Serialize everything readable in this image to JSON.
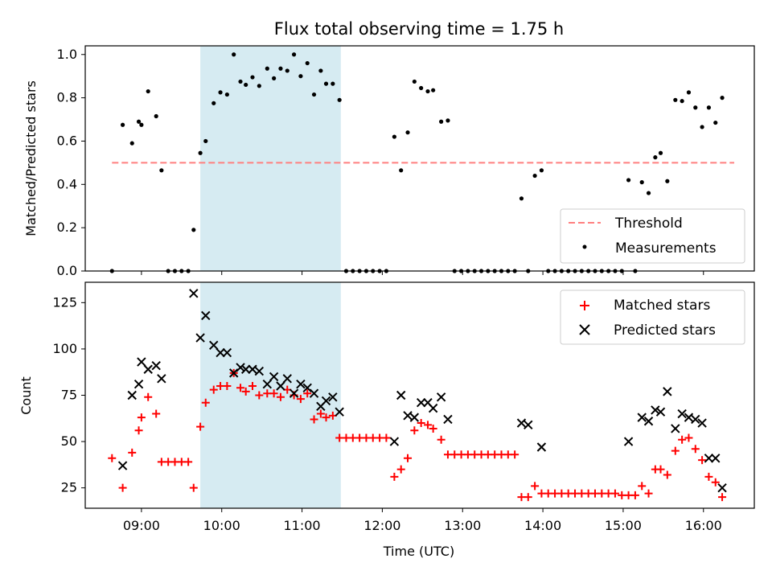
{
  "chart_data": {
    "type": "scatter",
    "title": "Flux total observing time = 1.75 h",
    "xlabel": "Time (UTC)",
    "x_ticks": [
      "09:00",
      "10:00",
      "11:00",
      "12:00",
      "13:00",
      "14:00",
      "15:00",
      "16:00"
    ],
    "shaded_interval": {
      "start": "09:44",
      "end": "11:29",
      "color": "#add8e6"
    },
    "top": {
      "ylabel": "Matched/Predicted stars",
      "ylim": [
        0,
        1.04
      ],
      "y_ticks": [
        "0.0",
        "0.2",
        "0.4",
        "0.6",
        "0.8",
        "1.0"
      ],
      "legend": [
        "Threshold",
        "Measurements"
      ],
      "legend_position": "lower-right",
      "threshold": {
        "value": 0.5,
        "x_start": "08:38",
        "x_end": "16:23",
        "color": "#ff7f7f"
      },
      "measurements": [
        [
          "08:38",
          0.0
        ],
        [
          "08:46",
          0.675
        ],
        [
          "08:53",
          0.59
        ],
        [
          "08:58",
          0.69
        ],
        [
          "09:00",
          0.675
        ],
        [
          "09:05",
          0.83
        ],
        [
          "09:11",
          0.715
        ],
        [
          "09:15",
          0.465
        ],
        [
          "09:20",
          0.0
        ],
        [
          "09:25",
          0.0
        ],
        [
          "09:30",
          0.0
        ],
        [
          "09:35",
          0.0
        ],
        [
          "09:39",
          0.19
        ],
        [
          "09:44",
          0.545
        ],
        [
          "09:48",
          0.6
        ],
        [
          "09:54",
          0.775
        ],
        [
          "09:59",
          0.825
        ],
        [
          "10:04",
          0.815
        ],
        [
          "10:09",
          1.0
        ],
        [
          "10:14",
          0.875
        ],
        [
          "10:18",
          0.86
        ],
        [
          "10:23",
          0.895
        ],
        [
          "10:28",
          0.855
        ],
        [
          "10:34",
          0.935
        ],
        [
          "10:39",
          0.89
        ],
        [
          "10:44",
          0.935
        ],
        [
          "10:49",
          0.925
        ],
        [
          "10:54",
          1.0
        ],
        [
          "10:59",
          0.9
        ],
        [
          "11:04",
          0.96
        ],
        [
          "11:09",
          0.815
        ],
        [
          "11:14",
          0.925
        ],
        [
          "11:18",
          0.865
        ],
        [
          "11:23",
          0.865
        ],
        [
          "11:28",
          0.79
        ],
        [
          "11:33",
          0.0
        ],
        [
          "11:38",
          0.0
        ],
        [
          "11:43",
          0.0
        ],
        [
          "11:48",
          0.0
        ],
        [
          "11:53",
          0.0
        ],
        [
          "11:58",
          0.0
        ],
        [
          "12:03",
          0.0
        ],
        [
          "12:09",
          0.62
        ],
        [
          "12:14",
          0.465
        ],
        [
          "12:19",
          0.64
        ],
        [
          "12:24",
          0.875
        ],
        [
          "12:29",
          0.845
        ],
        [
          "12:34",
          0.83
        ],
        [
          "12:38",
          0.835
        ],
        [
          "12:44",
          0.69
        ],
        [
          "12:49",
          0.695
        ],
        [
          "12:54",
          0.0
        ],
        [
          "12:59",
          0.0
        ],
        [
          "13:04",
          0.0
        ],
        [
          "13:09",
          0.0
        ],
        [
          "13:14",
          0.0
        ],
        [
          "13:19",
          0.0
        ],
        [
          "13:24",
          0.0
        ],
        [
          "13:29",
          0.0
        ],
        [
          "13:34",
          0.0
        ],
        [
          "13:39",
          0.0
        ],
        [
          "13:44",
          0.335
        ],
        [
          "13:49",
          0.0
        ],
        [
          "13:54",
          0.44
        ],
        [
          "13:59",
          0.465
        ],
        [
          "14:04",
          0.0
        ],
        [
          "14:09",
          0.0
        ],
        [
          "14:14",
          0.0
        ],
        [
          "14:19",
          0.0
        ],
        [
          "14:24",
          0.0
        ],
        [
          "14:29",
          0.0
        ],
        [
          "14:34",
          0.0
        ],
        [
          "14:39",
          0.0
        ],
        [
          "14:44",
          0.0
        ],
        [
          "14:49",
          0.0
        ],
        [
          "14:54",
          0.0
        ],
        [
          "14:59",
          0.0
        ],
        [
          "15:04",
          0.42
        ],
        [
          "15:09",
          0.0
        ],
        [
          "15:14",
          0.41
        ],
        [
          "15:19",
          0.36
        ],
        [
          "15:24",
          0.525
        ],
        [
          "15:28",
          0.545
        ],
        [
          "15:33",
          0.415
        ],
        [
          "15:39",
          0.79
        ],
        [
          "15:44",
          0.785
        ],
        [
          "15:49",
          0.825
        ],
        [
          "15:54",
          0.755
        ],
        [
          "15:59",
          0.665
        ],
        [
          "16:04",
          0.755
        ],
        [
          "16:09",
          0.685
        ],
        [
          "16:14",
          0.8
        ]
      ]
    },
    "bottom": {
      "ylabel": "Count",
      "ylim": [
        14,
        136
      ],
      "y_ticks": [
        "25",
        "50",
        "75",
        "100",
        "125"
      ],
      "legend": [
        "Matched stars",
        "Predicted stars"
      ],
      "legend_position": "upper-right",
      "series": [
        {
          "name": "Matched stars",
          "marker": "+",
          "color": "#ff0000",
          "points": [
            [
              "08:38",
              41
            ],
            [
              "08:46",
              25
            ],
            [
              "08:53",
              44
            ],
            [
              "08:58",
              56
            ],
            [
              "09:00",
              63
            ],
            [
              "09:05",
              74
            ],
            [
              "09:11",
              65
            ],
            [
              "09:15",
              39
            ],
            [
              "09:20",
              39
            ],
            [
              "09:25",
              39
            ],
            [
              "09:30",
              39
            ],
            [
              "09:35",
              39
            ],
            [
              "09:39",
              25
            ],
            [
              "09:44",
              58
            ],
            [
              "09:48",
              71
            ],
            [
              "09:54",
              78
            ],
            [
              "09:59",
              80
            ],
            [
              "10:04",
              80
            ],
            [
              "10:09",
              87
            ],
            [
              "10:14",
              79
            ],
            [
              "10:18",
              77
            ],
            [
              "10:23",
              80
            ],
            [
              "10:28",
              75
            ],
            [
              "10:34",
              76
            ],
            [
              "10:39",
              76
            ],
            [
              "10:44",
              74
            ],
            [
              "10:49",
              78
            ],
            [
              "10:54",
              75
            ],
            [
              "10:59",
              73
            ],
            [
              "11:04",
              76
            ],
            [
              "11:09",
              62
            ],
            [
              "11:14",
              65
            ],
            [
              "11:18",
              63
            ],
            [
              "11:23",
              64
            ],
            [
              "11:28",
              52
            ],
            [
              "11:33",
              52
            ],
            [
              "11:38",
              52
            ],
            [
              "11:43",
              52
            ],
            [
              "11:48",
              52
            ],
            [
              "11:53",
              52
            ],
            [
              "11:58",
              52
            ],
            [
              "12:03",
              52
            ],
            [
              "12:09",
              31
            ],
            [
              "12:14",
              35
            ],
            [
              "12:19",
              41
            ],
            [
              "12:24",
              56
            ],
            [
              "12:29",
              60
            ],
            [
              "12:34",
              59
            ],
            [
              "12:38",
              57
            ],
            [
              "12:44",
              51
            ],
            [
              "12:49",
              43
            ],
            [
              "12:54",
              43
            ],
            [
              "12:59",
              43
            ],
            [
              "13:04",
              43
            ],
            [
              "13:09",
              43
            ],
            [
              "13:14",
              43
            ],
            [
              "13:19",
              43
            ],
            [
              "13:24",
              43
            ],
            [
              "13:29",
              43
            ],
            [
              "13:34",
              43
            ],
            [
              "13:39",
              43
            ],
            [
              "13:44",
              20
            ],
            [
              "13:49",
              20
            ],
            [
              "13:54",
              26
            ],
            [
              "13:59",
              22
            ],
            [
              "14:04",
              22
            ],
            [
              "14:09",
              22
            ],
            [
              "14:14",
              22
            ],
            [
              "14:19",
              22
            ],
            [
              "14:24",
              22
            ],
            [
              "14:29",
              22
            ],
            [
              "14:34",
              22
            ],
            [
              "14:39",
              22
            ],
            [
              "14:44",
              22
            ],
            [
              "14:49",
              22
            ],
            [
              "14:54",
              22
            ],
            [
              "14:59",
              21
            ],
            [
              "15:04",
              21
            ],
            [
              "15:09",
              21
            ],
            [
              "15:14",
              26
            ],
            [
              "15:19",
              22
            ],
            [
              "15:24",
              35
            ],
            [
              "15:28",
              35
            ],
            [
              "15:33",
              32
            ],
            [
              "15:39",
              45
            ],
            [
              "15:44",
              51
            ],
            [
              "15:49",
              52
            ],
            [
              "15:54",
              46
            ],
            [
              "15:59",
              40
            ],
            [
              "16:04",
              31
            ],
            [
              "16:09",
              28
            ],
            [
              "16:14",
              20
            ]
          ]
        },
        {
          "name": "Predicted stars",
          "marker": "x",
          "color": "#000000",
          "points": [
            [
              "08:46",
              37
            ],
            [
              "08:53",
              75
            ],
            [
              "08:58",
              81
            ],
            [
              "09:00",
              93
            ],
            [
              "09:05",
              89
            ],
            [
              "09:11",
              91
            ],
            [
              "09:15",
              84
            ],
            [
              "09:39",
              130
            ],
            [
              "09:44",
              106
            ],
            [
              "09:48",
              118
            ],
            [
              "09:54",
              102
            ],
            [
              "09:59",
              98
            ],
            [
              "10:04",
              98
            ],
            [
              "10:09",
              87
            ],
            [
              "10:14",
              90
            ],
            [
              "10:18",
              89
            ],
            [
              "10:23",
              89
            ],
            [
              "10:28",
              88
            ],
            [
              "10:34",
              81
            ],
            [
              "10:39",
              85
            ],
            [
              "10:44",
              80
            ],
            [
              "10:49",
              84
            ],
            [
              "10:54",
              76
            ],
            [
              "10:59",
              81
            ],
            [
              "11:04",
              79
            ],
            [
              "11:09",
              76
            ],
            [
              "11:14",
              69
            ],
            [
              "11:18",
              72
            ],
            [
              "11:23",
              74
            ],
            [
              "11:28",
              66
            ],
            [
              "12:09",
              50
            ],
            [
              "12:14",
              75
            ],
            [
              "12:19",
              64
            ],
            [
              "12:24",
              63
            ],
            [
              "12:29",
              71
            ],
            [
              "12:34",
              71
            ],
            [
              "12:38",
              68
            ],
            [
              "12:44",
              74
            ],
            [
              "12:49",
              62
            ],
            [
              "13:44",
              60
            ],
            [
              "13:49",
              59
            ],
            [
              "13:59",
              47
            ],
            [
              "15:04",
              50
            ],
            [
              "15:14",
              63
            ],
            [
              "15:19",
              61
            ],
            [
              "15:24",
              67
            ],
            [
              "15:28",
              66
            ],
            [
              "15:33",
              77
            ],
            [
              "15:39",
              57
            ],
            [
              "15:44",
              65
            ],
            [
              "15:49",
              63
            ],
            [
              "15:54",
              62
            ],
            [
              "15:59",
              60
            ],
            [
              "16:04",
              41
            ],
            [
              "16:09",
              41
            ],
            [
              "16:14",
              25
            ]
          ]
        }
      ]
    }
  }
}
